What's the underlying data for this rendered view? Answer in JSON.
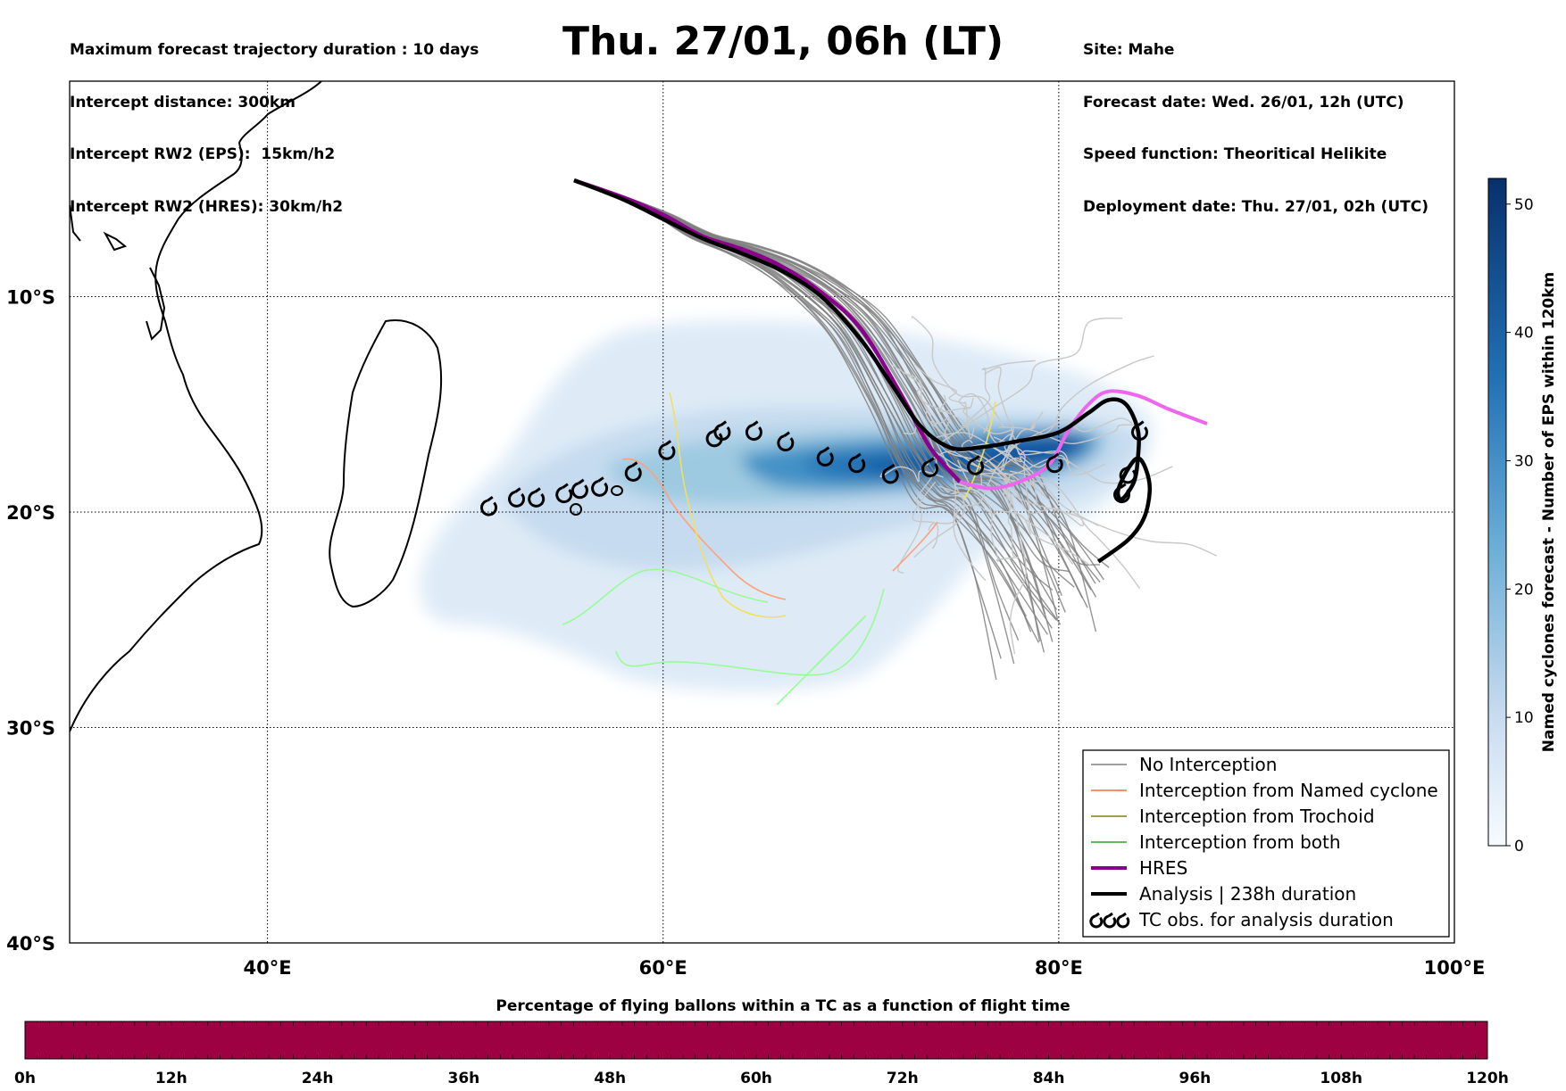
{
  "header_left": [
    "Maximum forecast trajectory duration : 10 days",
    "Intercept distance: 300km",
    "Intercept RW2 (EPS):  15km/h2",
    "Intercept RW2 (HRES): 30km/h2"
  ],
  "header_right": [
    "Site: Mahe",
    "Forecast date: Wed. 26/01, 12h (UTC)",
    "Speed function: Theoritical Helikite",
    "Deployment date: Thu. 27/01, 02h (UTC)"
  ],
  "main_title": "Thu. 27/01, 06h (LT)",
  "colors": {
    "no_interception": "#808080",
    "named_cyclone": "#ff6a3a",
    "trochoid": "#8a7a1a",
    "both": "#2ca02c",
    "hres": "#8b008b",
    "analysis": "#000000",
    "density_dark": "#08306b",
    "density_light": "#deebf7",
    "time_bar": "#9e0142"
  },
  "chart_data": [
    {
      "type": "map",
      "lon_range": [
        30,
        100
      ],
      "lat_range": [
        -40,
        0
      ],
      "x_ticks": [
        "40°E",
        "60°E",
        "80°E",
        "100°E"
      ],
      "y_ticks": [
        "10°S",
        "20°S",
        "30°S",
        "40°S"
      ],
      "grid": true,
      "legend": {
        "placement": "lower-right",
        "items": [
          {
            "label": "No Interception",
            "style": "thin-gray"
          },
          {
            "label": "Interception from Named cyclone",
            "style": "thin-orange"
          },
          {
            "label": "Interception from Trochoid",
            "style": "thin-olive"
          },
          {
            "label": "Interception from both",
            "style": "thin-green"
          },
          {
            "label": "HRES",
            "style": "thick-purple"
          },
          {
            "label": "Analysis | 238h duration",
            "style": "thick-black"
          },
          {
            "label": "TC obs. for analysis duration",
            "style": "cyclone-symbols"
          }
        ]
      },
      "series": {
        "hres": [
          [
            55.5,
            -4.6
          ],
          [
            58,
            -5.4
          ],
          [
            60,
            -6.2
          ],
          [
            62,
            -7.2
          ],
          [
            64,
            -7.8
          ],
          [
            66,
            -8.6
          ],
          [
            68,
            -9.8
          ],
          [
            70,
            -11.5
          ],
          [
            72,
            -14.5
          ],
          [
            73.5,
            -17
          ],
          [
            75,
            -18.6
          ],
          [
            76.5,
            -18.9
          ],
          [
            78,
            -18.6
          ],
          [
            79.5,
            -17.8
          ],
          [
            80.5,
            -16.2
          ],
          [
            81.5,
            -15
          ],
          [
            82.5,
            -14.4
          ],
          [
            84,
            -14.6
          ],
          [
            85.5,
            -15.2
          ],
          [
            87.5,
            -15.9
          ]
        ],
        "analysis": [
          [
            55.5,
            -4.6
          ],
          [
            58,
            -5.5
          ],
          [
            60,
            -6.4
          ],
          [
            62,
            -7.3
          ],
          [
            64,
            -8
          ],
          [
            66,
            -8.8
          ],
          [
            68,
            -10
          ],
          [
            70,
            -12
          ],
          [
            71.5,
            -14
          ],
          [
            73,
            -16
          ],
          [
            74.5,
            -17
          ],
          [
            76,
            -17
          ],
          [
            78,
            -16.7
          ],
          [
            80,
            -16.3
          ],
          [
            81.5,
            -15.4
          ],
          [
            82.5,
            -14.8
          ],
          [
            83.4,
            -15
          ],
          [
            84,
            -16.2
          ],
          [
            84,
            -17.5
          ],
          [
            83.8,
            -18.6
          ],
          [
            83.2,
            -19.4
          ],
          [
            83,
            -19
          ],
          [
            83.5,
            -18
          ],
          [
            84,
            -17.5
          ],
          [
            84.4,
            -18
          ],
          [
            84.6,
            -19
          ],
          [
            84.3,
            -20.3
          ],
          [
            83.5,
            -21.3
          ],
          [
            82,
            -22.3
          ]
        ],
        "tc_observations": [
          [
            51.2,
            -19.8
          ],
          [
            52.6,
            -19.4
          ],
          [
            53.6,
            -19.4
          ],
          [
            55,
            -19.2
          ],
          [
            55.8,
            -19
          ],
          [
            56.8,
            -18.9
          ],
          [
            58.5,
            -18.2
          ],
          [
            60.2,
            -17.2
          ],
          [
            62.6,
            -16.6
          ],
          [
            63,
            -16.3
          ],
          [
            64.6,
            -16.3
          ],
          [
            66.2,
            -16.8
          ],
          [
            68.2,
            -17.5
          ],
          [
            69.8,
            -17.8
          ],
          [
            71.5,
            -18.3
          ],
          [
            73.5,
            -18
          ],
          [
            75.8,
            -17.9
          ],
          [
            79.8,
            -17.8
          ],
          [
            83.5,
            -18.3
          ],
          [
            84.1,
            -16.3
          ],
          [
            83.2,
            -19.2
          ]
        ]
      },
      "density_colorbar": {
        "label": "Named cyclones forecast - Number of EPS within 120km",
        "ticks": [
          0,
          10,
          20,
          30,
          40,
          50
        ],
        "range": [
          0,
          52
        ]
      }
    },
    {
      "type": "bar",
      "title": "Percentage of flying ballons within a TC as a function of flight time",
      "categories": [
        "0h",
        "12h",
        "24h",
        "36h",
        "48h",
        "60h",
        "72h",
        "84h",
        "96h",
        "108h",
        "120h"
      ],
      "range_hours": [
        0,
        120
      ],
      "values_percent": [
        0,
        0,
        0,
        0,
        0,
        0,
        0,
        0,
        0,
        0,
        0
      ]
    }
  ]
}
